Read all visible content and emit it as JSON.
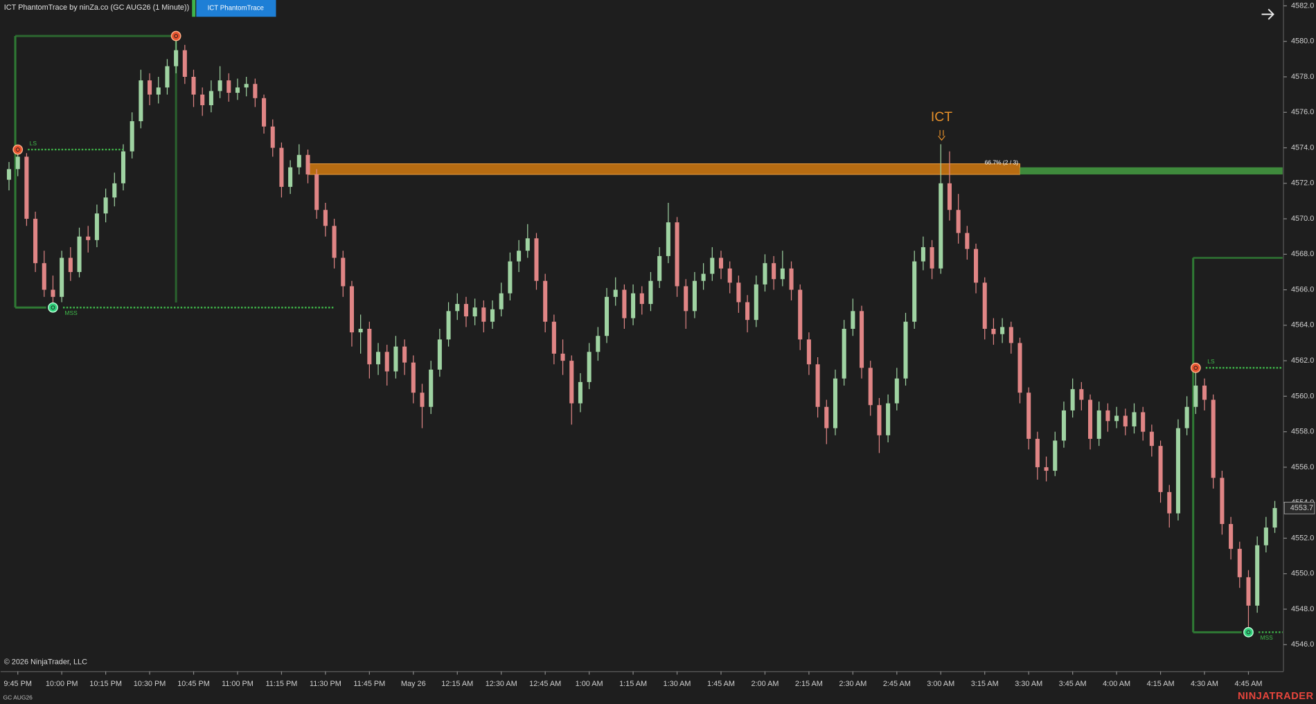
{
  "chart_data": {
    "type": "candlestick",
    "title": "ICT PhantomTrace by ninZa.co (GC AUG26 (1 Minute))",
    "indicator_button": "ICT PhantomTrace",
    "copyright": "© 2026 NinjaTrader, LLC",
    "symbol": "GC AUG26",
    "brand": "NINJATRADER",
    "up_color": "#9fd3a2",
    "down_color": "#e08585",
    "categories": [
      null,
      "9:45 PM",
      null,
      null,
      null,
      null,
      "10:00 PM",
      null,
      null,
      null,
      null,
      "10:15 PM",
      null,
      null,
      null,
      null,
      "10:30 PM",
      null,
      null,
      null,
      null,
      "10:45 PM",
      null,
      null,
      null,
      null,
      "11:00 PM",
      null,
      null,
      null,
      null,
      "11:15 PM",
      null,
      null,
      null,
      null,
      "11:30 PM",
      null,
      null,
      null,
      null,
      "11:45 PM",
      null,
      null,
      null,
      null,
      "May 26",
      null,
      null,
      null,
      null,
      "12:15 AM",
      null,
      null,
      null,
      null,
      "12:30 AM",
      null,
      null,
      null,
      null,
      "12:45 AM",
      null,
      null,
      null,
      null,
      "1:00 AM",
      null,
      null,
      null,
      null,
      "1:15 AM",
      null,
      null,
      null,
      null,
      "1:30 AM",
      null,
      null,
      null,
      null,
      "1:45 AM",
      null,
      null,
      null,
      null,
      "2:00 AM",
      null,
      null,
      null,
      null,
      "2:15 AM",
      null,
      null,
      null,
      null,
      "2:30 AM",
      null,
      null,
      null,
      null,
      "2:45 AM",
      null,
      null,
      null,
      null,
      "3:00 AM",
      null,
      null,
      null,
      null,
      "3:15 AM",
      null,
      null,
      null,
      null,
      "3:30 AM",
      null,
      null,
      null,
      null,
      "3:45 AM",
      null,
      null,
      null,
      null,
      "4:00 AM",
      null,
      null,
      null,
      null,
      "4:15 AM",
      null,
      null,
      null,
      null,
      "4:30 AM",
      null,
      null,
      null,
      null,
      "4:45 AM",
      null,
      null,
      null
    ],
    "open": [
      4572.2,
      4572.8,
      4573.5,
      4570.0,
      4567.5,
      4566.0,
      4565.6,
      4567.8,
      4567.0,
      4569.0,
      4568.8,
      4570.3,
      4571.2,
      4572.0,
      4573.8,
      4575.5,
      4577.8,
      4577.0,
      4577.4,
      4578.6,
      4579.5,
      4578.0,
      4577.0,
      4576.4,
      4577.2,
      4577.8,
      4577.1,
      4577.4,
      4577.6,
      4576.8,
      4575.2,
      4574.0,
      4571.8,
      4572.9,
      4573.6,
      4572.5,
      4570.5,
      4569.6,
      4567.8,
      4566.2,
      4563.6,
      4563.8,
      4561.8,
      4562.5,
      4561.4,
      4562.8,
      4561.9,
      4560.2,
      4559.4,
      4561.5,
      4563.2,
      4564.8,
      4565.2,
      4564.5,
      4565.0,
      4564.2,
      4564.9,
      4565.8,
      4567.6,
      4568.2,
      4568.9,
      4566.5,
      4564.2,
      4562.4,
      4562.0,
      4559.6,
      4560.8,
      4562.5,
      4563.4,
      4565.6,
      4566.0,
      4564.4,
      4565.8,
      4565.2,
      4566.5,
      4567.9,
      4569.8,
      4566.2,
      4564.8,
      4566.5,
      4566.9,
      4567.8,
      4567.2,
      4566.4,
      4565.3,
      4564.3,
      4566.3,
      4567.5,
      4566.6,
      4567.2,
      4566.0,
      4563.2,
      4561.8,
      4559.4,
      4558.2,
      4561.0,
      4563.8,
      4564.8,
      4561.6,
      4559.5,
      4557.8,
      4559.6,
      4561.0,
      4564.2,
      4567.6,
      4568.4,
      4567.2,
      4572.0,
      4570.5,
      4569.2,
      4568.3,
      4566.4,
      4563.8,
      4563.5,
      4563.9,
      4563.0,
      4560.2,
      4557.6,
      4556.0,
      4555.8,
      4557.5,
      4559.2,
      4560.4,
      4559.8,
      4557.6,
      4559.2,
      4558.6,
      4558.9,
      4558.3,
      4559.1,
      4558.0,
      4557.2,
      4554.6,
      4553.4,
      4558.2,
      4559.4,
      4560.6,
      4559.8,
      4555.4,
      4552.8,
      4551.4,
      4549.8,
      4548.2,
      4551.6,
      4552.6
    ],
    "high": [
      4573.2,
      4573.9,
      4573.7,
      4570.4,
      4568.2,
      4566.8,
      4568.2,
      4568.4,
      4569.5,
      4569.6,
      4570.8,
      4571.7,
      4572.6,
      4574.2,
      4576.0,
      4578.4,
      4578.2,
      4578.0,
      4579.0,
      4580.3,
      4579.8,
      4578.4,
      4577.4,
      4577.8,
      4578.6,
      4578.2,
      4577.9,
      4578.0,
      4577.9,
      4577.0,
      4575.6,
      4574.3,
      4573.3,
      4574.2,
      4573.9,
      4572.8,
      4570.9,
      4570.0,
      4568.2,
      4566.5,
      4564.6,
      4564.2,
      4563.0,
      4562.9,
      4563.4,
      4563.2,
      4562.3,
      4560.7,
      4562.0,
      4563.8,
      4565.3,
      4565.8,
      4565.6,
      4565.5,
      4565.4,
      4565.4,
      4566.4,
      4568.1,
      4568.8,
      4569.7,
      4569.2,
      4566.9,
      4564.6,
      4563.2,
      4562.3,
      4561.3,
      4563.0,
      4563.9,
      4566.1,
      4566.7,
      4566.3,
      4566.3,
      4566.2,
      4567.0,
      4568.4,
      4570.9,
      4570.1,
      4566.6,
      4567.0,
      4567.5,
      4568.4,
      4568.2,
      4567.6,
      4566.8,
      4565.7,
      4566.8,
      4568.0,
      4567.9,
      4568.2,
      4567.6,
      4566.3,
      4563.6,
      4562.2,
      4559.8,
      4561.5,
      4564.3,
      4565.5,
      4565.1,
      4562.0,
      4559.9,
      4560.1,
      4561.6,
      4564.7,
      4568.2,
      4569.0,
      4568.8,
      4574.2,
      4573.8,
      4571.4,
      4569.6,
      4568.6,
      4566.7,
      4564.4,
      4564.4,
      4564.2,
      4563.3,
      4560.5,
      4558.0,
      4556.6,
      4558.0,
      4559.7,
      4561.0,
      4560.8,
      4560.1,
      4559.7,
      4559.6,
      4559.4,
      4559.3,
      4559.6,
      4559.4,
      4558.4,
      4557.5,
      4555.0,
      4558.7,
      4560.0,
      4561.6,
      4561.0,
      4560.1,
      4555.8,
      4553.2,
      4551.8,
      4550.2,
      4552.1,
      4553.2,
      4554.1
    ],
    "low": [
      4571.6,
      4572.4,
      4569.6,
      4567.0,
      4565.6,
      4565.0,
      4565.3,
      4566.5,
      4566.7,
      4568.1,
      4568.4,
      4569.8,
      4570.7,
      4571.6,
      4573.4,
      4575.1,
      4576.4,
      4576.5,
      4577.0,
      4578.2,
      4577.6,
      4576.3,
      4575.8,
      4576.0,
      4576.8,
      4576.6,
      4576.7,
      4576.9,
      4576.3,
      4574.8,
      4573.5,
      4571.2,
      4571.4,
      4572.5,
      4572.0,
      4570.0,
      4569.0,
      4567.2,
      4565.6,
      4562.8,
      4562.4,
      4561.0,
      4561.2,
      4560.6,
      4561.0,
      4561.2,
      4559.6,
      4558.2,
      4559.0,
      4561.1,
      4562.8,
      4564.3,
      4563.9,
      4564.0,
      4563.6,
      4563.8,
      4564.5,
      4565.4,
      4567.0,
      4567.8,
      4566.0,
      4563.6,
      4561.8,
      4561.2,
      4558.4,
      4559.1,
      4560.4,
      4562.0,
      4563.0,
      4565.1,
      4563.8,
      4564.0,
      4564.6,
      4564.8,
      4566.1,
      4567.5,
      4565.6,
      4563.8,
      4564.4,
      4566.0,
      4566.5,
      4566.6,
      4565.8,
      4564.7,
      4563.6,
      4563.9,
      4565.9,
      4566.0,
      4566.2,
      4565.4,
      4562.6,
      4561.2,
      4558.8,
      4557.3,
      4557.8,
      4560.6,
      4563.4,
      4561.0,
      4558.9,
      4556.8,
      4557.4,
      4559.2,
      4560.6,
      4563.8,
      4567.1,
      4566.6,
      4566.9,
      4569.9,
      4568.6,
      4567.7,
      4565.8,
      4563.2,
      4562.9,
      4563.0,
      4562.4,
      4559.6,
      4557.0,
      4555.3,
      4555.2,
      4555.5,
      4557.1,
      4558.8,
      4559.2,
      4557.0,
      4557.2,
      4558.0,
      4558.2,
      4557.8,
      4557.9,
      4557.5,
      4556.6,
      4554.0,
      4552.6,
      4553.0,
      4557.8,
      4559.0,
      4559.2,
      4554.8,
      4552.2,
      4550.8,
      4549.2,
      4546.7,
      4547.8,
      4551.2,
      4552.3
    ],
    "close": [
      4572.8,
      4573.5,
      4570.0,
      4567.5,
      4566.0,
      4565.6,
      4567.8,
      4567.0,
      4569.0,
      4568.8,
      4570.3,
      4571.2,
      4572.0,
      4573.8,
      4575.5,
      4577.8,
      4577.0,
      4577.4,
      4578.6,
      4579.5,
      4578.0,
      4577.0,
      4576.4,
      4577.2,
      4577.8,
      4577.1,
      4577.4,
      4577.6,
      4576.8,
      4575.2,
      4574.0,
      4571.8,
      4572.9,
      4573.6,
      4572.5,
      4570.5,
      4569.6,
      4567.8,
      4566.2,
      4563.6,
      4563.8,
      4561.8,
      4562.5,
      4561.4,
      4562.8,
      4561.9,
      4560.2,
      4559.4,
      4561.5,
      4563.2,
      4564.8,
      4565.2,
      4564.5,
      4565.0,
      4564.2,
      4564.9,
      4565.8,
      4567.6,
      4568.2,
      4568.9,
      4566.5,
      4564.2,
      4562.4,
      4562.0,
      4559.6,
      4560.8,
      4562.5,
      4563.4,
      4565.6,
      4566.0,
      4564.4,
      4565.8,
      4565.2,
      4566.5,
      4567.9,
      4569.8,
      4566.2,
      4564.8,
      4566.5,
      4566.9,
      4567.8,
      4567.2,
      4566.4,
      4565.3,
      4564.3,
      4566.3,
      4567.5,
      4566.6,
      4567.2,
      4566.0,
      4563.2,
      4561.8,
      4559.4,
      4558.2,
      4561.0,
      4563.8,
      4564.8,
      4561.6,
      4559.5,
      4557.8,
      4559.6,
      4561.0,
      4564.2,
      4567.6,
      4568.4,
      4567.2,
      4572.0,
      4570.5,
      4569.2,
      4568.3,
      4566.4,
      4563.8,
      4563.5,
      4563.9,
      4563.0,
      4560.2,
      4557.6,
      4556.0,
      4555.8,
      4557.5,
      4559.2,
      4560.4,
      4559.8,
      4557.6,
      4559.2,
      4558.6,
      4558.9,
      4558.3,
      4559.1,
      4558.0,
      4557.2,
      4554.6,
      4553.4,
      4558.2,
      4559.4,
      4560.6,
      4559.8,
      4555.4,
      4552.8,
      4551.4,
      4549.8,
      4548.2,
      4551.6,
      4552.6,
      4553.7
    ],
    "last_price": 4553.7,
    "ylim": [
      4544.5,
      4582.33
    ],
    "yticks": [
      {
        "value": 4546,
        "label": "4546.0"
      },
      {
        "value": 4548,
        "label": "4548.0"
      },
      {
        "value": 4550,
        "label": "4550.0"
      },
      {
        "value": 4552,
        "label": "4552.0"
      },
      {
        "value": 4554,
        "label": "4554.0"
      },
      {
        "value": 4556,
        "label": "4556.0"
      },
      {
        "value": 4558,
        "label": "4558.0"
      },
      {
        "value": 4560,
        "label": "4560.0"
      },
      {
        "value": 4562,
        "label": "4562.0"
      },
      {
        "value": 4564,
        "label": "4564.0"
      },
      {
        "value": 4566,
        "label": "4566.0"
      },
      {
        "value": 4568,
        "label": "4568.0"
      },
      {
        "value": 4570,
        "label": "4570.0"
      },
      {
        "value": 4572,
        "label": "4572.0"
      },
      {
        "value": 4574,
        "label": "4574.0"
      },
      {
        "value": 4576,
        "label": "4576.0"
      },
      {
        "value": 4578,
        "label": "4578.0"
      },
      {
        "value": 4580,
        "label": "4580.0"
      },
      {
        "value": 4582,
        "label": "4582.0"
      }
    ],
    "grid": false,
    "boxes": [
      {
        "from_bar": 1,
        "to_bar": 19,
        "mss_bar": 5,
        "top": 4580.3,
        "bottom": 4565.0,
        "closed": true
      },
      {
        "from_bar": 135,
        "to_bar": 144,
        "mss_bar": 141,
        "top": 4567.8,
        "bottom": 4546.7,
        "closed": false
      }
    ],
    "pivots": [
      {
        "label": "LS",
        "bar": 1,
        "price": 4573.9,
        "kind": "high",
        "end_bar": 13
      },
      {
        "bar": 19,
        "price": 4580.3,
        "kind": "high"
      },
      {
        "label": "MSS",
        "bar": 5,
        "price": 4565.0,
        "kind": "low",
        "end_bar": 37
      },
      {
        "label": "LS",
        "bar": 135,
        "price": 4561.6,
        "kind": "high",
        "end_bar": 144
      },
      {
        "label": "MSS",
        "bar": 141,
        "price": 4546.7,
        "kind": "low",
        "end_bar": 144
      }
    ],
    "zone": {
      "label": "66.7% (2 / 3)",
      "from_bar": 34,
      "to_bar": 115,
      "top": 4573.1,
      "bottom": 4572.5,
      "color": "#d27a10",
      "extension_top": 4572.9,
      "extension_color": "#3f8a3c"
    },
    "signal": {
      "label": "ICT",
      "bar": 106,
      "color": "#e8912a"
    }
  }
}
